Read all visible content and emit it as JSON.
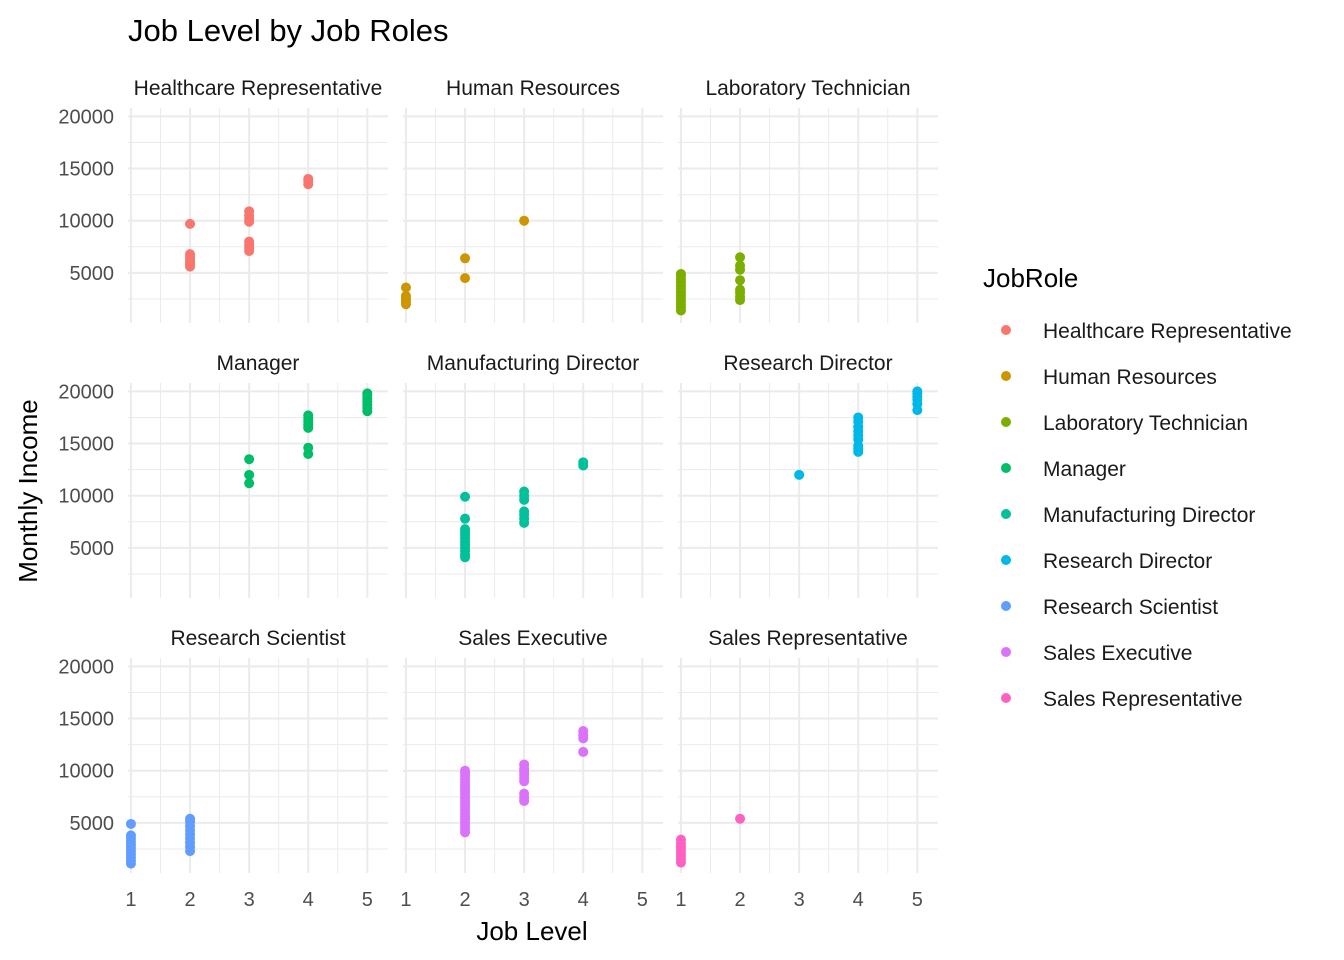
{
  "chart_data": {
    "type": "scatter",
    "title": "Job Level by Job Roles",
    "xlabel": "Job Level",
    "ylabel": "Monthly Income",
    "legend_title": "JobRole",
    "legend_position": "right",
    "xlim": [
      0.95,
      5.35
    ],
    "ylim": [
      200,
      20800
    ],
    "x_ticks": [
      1,
      2,
      3,
      4,
      5
    ],
    "y_ticks": [
      5000,
      10000,
      15000,
      20000
    ],
    "grid": true,
    "panels": [
      {
        "name": "Healthcare Representative",
        "color": "#F8766D",
        "points": [
          {
            "x": 2,
            "y": 5600
          },
          {
            "x": 2,
            "y": 5800
          },
          {
            "x": 2,
            "y": 6000
          },
          {
            "x": 2,
            "y": 6200
          },
          {
            "x": 2,
            "y": 6500
          },
          {
            "x": 2,
            "y": 6800
          },
          {
            "x": 2,
            "y": 9700
          },
          {
            "x": 3,
            "y": 7100
          },
          {
            "x": 3,
            "y": 7400
          },
          {
            "x": 3,
            "y": 7700
          },
          {
            "x": 3,
            "y": 8000
          },
          {
            "x": 3,
            "y": 9900
          },
          {
            "x": 3,
            "y": 10200
          },
          {
            "x": 3,
            "y": 10500
          },
          {
            "x": 3,
            "y": 10900
          },
          {
            "x": 4,
            "y": 13500
          },
          {
            "x": 4,
            "y": 13800
          },
          {
            "x": 4,
            "y": 14000
          }
        ]
      },
      {
        "name": "Human Resources",
        "color": "#CD9600",
        "points": [
          {
            "x": 1,
            "y": 2000
          },
          {
            "x": 1,
            "y": 2200
          },
          {
            "x": 1,
            "y": 2400
          },
          {
            "x": 1,
            "y": 2600
          },
          {
            "x": 1,
            "y": 2800
          },
          {
            "x": 1,
            "y": 3600
          },
          {
            "x": 2,
            "y": 4500
          },
          {
            "x": 2,
            "y": 6400
          },
          {
            "x": 3,
            "y": 10000
          }
        ]
      },
      {
        "name": "Laboratory Technician",
        "color": "#7CAE00",
        "points": [
          {
            "x": 1,
            "y": 1400
          },
          {
            "x": 1,
            "y": 1700
          },
          {
            "x": 1,
            "y": 2000
          },
          {
            "x": 1,
            "y": 2300
          },
          {
            "x": 1,
            "y": 2600
          },
          {
            "x": 1,
            "y": 2900
          },
          {
            "x": 1,
            "y": 3200
          },
          {
            "x": 1,
            "y": 3500
          },
          {
            "x": 1,
            "y": 3800
          },
          {
            "x": 1,
            "y": 4100
          },
          {
            "x": 1,
            "y": 4400
          },
          {
            "x": 1,
            "y": 4700
          },
          {
            "x": 1,
            "y": 4900
          },
          {
            "x": 2,
            "y": 2400
          },
          {
            "x": 2,
            "y": 2700
          },
          {
            "x": 2,
            "y": 3100
          },
          {
            "x": 2,
            "y": 3400
          },
          {
            "x": 2,
            "y": 4300
          },
          {
            "x": 2,
            "y": 5300
          },
          {
            "x": 2,
            "y": 5700
          },
          {
            "x": 2,
            "y": 6500
          }
        ]
      },
      {
        "name": "Manager",
        "color": "#00BE67",
        "points": [
          {
            "x": 3,
            "y": 11200
          },
          {
            "x": 3,
            "y": 12000
          },
          {
            "x": 3,
            "y": 13500
          },
          {
            "x": 4,
            "y": 14000
          },
          {
            "x": 4,
            "y": 14600
          },
          {
            "x": 4,
            "y": 16500
          },
          {
            "x": 4,
            "y": 16800
          },
          {
            "x": 4,
            "y": 17100
          },
          {
            "x": 4,
            "y": 17400
          },
          {
            "x": 4,
            "y": 17700
          },
          {
            "x": 5,
            "y": 18100
          },
          {
            "x": 5,
            "y": 18400
          },
          {
            "x": 5,
            "y": 18700
          },
          {
            "x": 5,
            "y": 19000
          },
          {
            "x": 5,
            "y": 19300
          },
          {
            "x": 5,
            "y": 19600
          },
          {
            "x": 5,
            "y": 19800
          }
        ]
      },
      {
        "name": "Manufacturing Director",
        "color": "#00C19A",
        "points": [
          {
            "x": 2,
            "y": 4100
          },
          {
            "x": 2,
            "y": 4400
          },
          {
            "x": 2,
            "y": 4700
          },
          {
            "x": 2,
            "y": 5000
          },
          {
            "x": 2,
            "y": 5300
          },
          {
            "x": 2,
            "y": 5600
          },
          {
            "x": 2,
            "y": 5900
          },
          {
            "x": 2,
            "y": 6200
          },
          {
            "x": 2,
            "y": 6500
          },
          {
            "x": 2,
            "y": 6800
          },
          {
            "x": 2,
            "y": 7800
          },
          {
            "x": 2,
            "y": 9900
          },
          {
            "x": 3,
            "y": 7400
          },
          {
            "x": 3,
            "y": 7800
          },
          {
            "x": 3,
            "y": 8200
          },
          {
            "x": 3,
            "y": 8500
          },
          {
            "x": 3,
            "y": 9600
          },
          {
            "x": 3,
            "y": 10000
          },
          {
            "x": 3,
            "y": 10400
          },
          {
            "x": 4,
            "y": 12900
          },
          {
            "x": 4,
            "y": 13200
          }
        ]
      },
      {
        "name": "Research Director",
        "color": "#00B8E7",
        "points": [
          {
            "x": 3,
            "y": 12000
          },
          {
            "x": 4,
            "y": 14200
          },
          {
            "x": 4,
            "y": 14500
          },
          {
            "x": 4,
            "y": 14800
          },
          {
            "x": 4,
            "y": 15400
          },
          {
            "x": 4,
            "y": 15800
          },
          {
            "x": 4,
            "y": 16200
          },
          {
            "x": 4,
            "y": 16600
          },
          {
            "x": 4,
            "y": 17100
          },
          {
            "x": 4,
            "y": 17500
          },
          {
            "x": 5,
            "y": 18200
          },
          {
            "x": 5,
            "y": 18800
          },
          {
            "x": 5,
            "y": 19200
          },
          {
            "x": 5,
            "y": 19500
          },
          {
            "x": 5,
            "y": 19800
          },
          {
            "x": 5,
            "y": 20000
          }
        ]
      },
      {
        "name": "Research Scientist",
        "color": "#619CFF",
        "points": [
          {
            "x": 1,
            "y": 1100
          },
          {
            "x": 1,
            "y": 1400
          },
          {
            "x": 1,
            "y": 1700
          },
          {
            "x": 1,
            "y": 2000
          },
          {
            "x": 1,
            "y": 2300
          },
          {
            "x": 1,
            "y": 2600
          },
          {
            "x": 1,
            "y": 2900
          },
          {
            "x": 1,
            "y": 3200
          },
          {
            "x": 1,
            "y": 3500
          },
          {
            "x": 1,
            "y": 3800
          },
          {
            "x": 1,
            "y": 4900
          },
          {
            "x": 2,
            "y": 2300
          },
          {
            "x": 2,
            "y": 2700
          },
          {
            "x": 2,
            "y": 3100
          },
          {
            "x": 2,
            "y": 3500
          },
          {
            "x": 2,
            "y": 3900
          },
          {
            "x": 2,
            "y": 4300
          },
          {
            "x": 2,
            "y": 4700
          },
          {
            "x": 2,
            "y": 5100
          },
          {
            "x": 2,
            "y": 5400
          }
        ]
      },
      {
        "name": "Sales Executive",
        "color": "#DB72FB",
        "points": [
          {
            "x": 2,
            "y": 4100
          },
          {
            "x": 2,
            "y": 4400
          },
          {
            "x": 2,
            "y": 4700
          },
          {
            "x": 2,
            "y": 5000
          },
          {
            "x": 2,
            "y": 5300
          },
          {
            "x": 2,
            "y": 5600
          },
          {
            "x": 2,
            "y": 5900
          },
          {
            "x": 2,
            "y": 6200
          },
          {
            "x": 2,
            "y": 6500
          },
          {
            "x": 2,
            "y": 6800
          },
          {
            "x": 2,
            "y": 7100
          },
          {
            "x": 2,
            "y": 7400
          },
          {
            "x": 2,
            "y": 7700
          },
          {
            "x": 2,
            "y": 8000
          },
          {
            "x": 2,
            "y": 8300
          },
          {
            "x": 2,
            "y": 8600
          },
          {
            "x": 2,
            "y": 8900
          },
          {
            "x": 2,
            "y": 9200
          },
          {
            "x": 2,
            "y": 9500
          },
          {
            "x": 2,
            "y": 9800
          },
          {
            "x": 2,
            "y": 10000
          },
          {
            "x": 3,
            "y": 7100
          },
          {
            "x": 3,
            "y": 7400
          },
          {
            "x": 3,
            "y": 7800
          },
          {
            "x": 3,
            "y": 9000
          },
          {
            "x": 3,
            "y": 9300
          },
          {
            "x": 3,
            "y": 9600
          },
          {
            "x": 3,
            "y": 9900
          },
          {
            "x": 3,
            "y": 10200
          },
          {
            "x": 3,
            "y": 10600
          },
          {
            "x": 4,
            "y": 11800
          },
          {
            "x": 4,
            "y": 13100
          },
          {
            "x": 4,
            "y": 13400
          },
          {
            "x": 4,
            "y": 13800
          }
        ]
      },
      {
        "name": "Sales Representative",
        "color": "#FF61C3",
        "points": [
          {
            "x": 1,
            "y": 1200
          },
          {
            "x": 1,
            "y": 1500
          },
          {
            "x": 1,
            "y": 1800
          },
          {
            "x": 1,
            "y": 2100
          },
          {
            "x": 1,
            "y": 2400
          },
          {
            "x": 1,
            "y": 2700
          },
          {
            "x": 1,
            "y": 3000
          },
          {
            "x": 1,
            "y": 3400
          },
          {
            "x": 2,
            "y": 5400
          }
        ]
      }
    ]
  }
}
